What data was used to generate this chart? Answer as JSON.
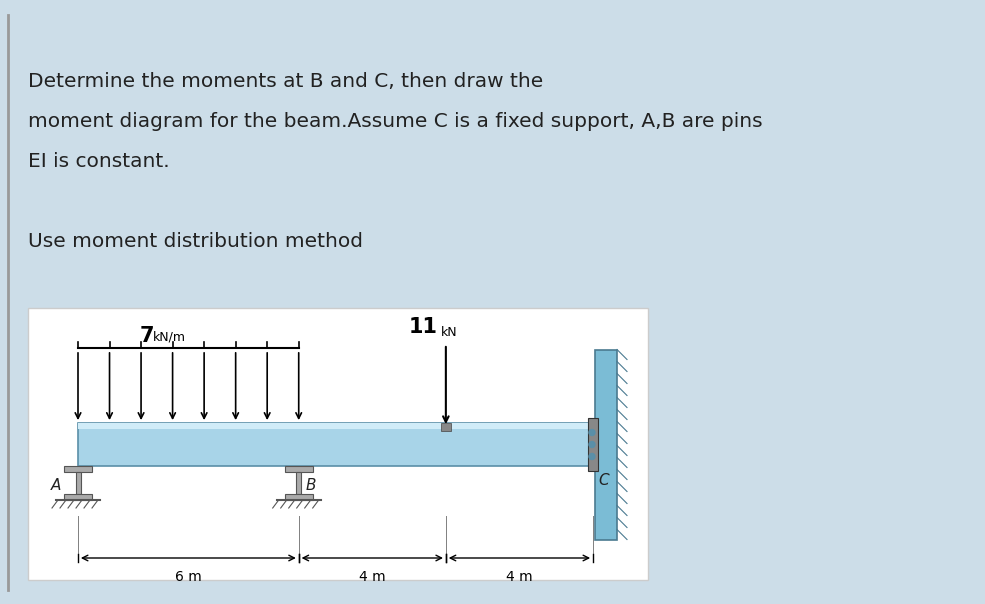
{
  "bg_color": "#ccdde8",
  "title_lines": [
    "Determine the moments at B and C, then draw the",
    "moment diagram for the beam.Assume C is a fixed support, A,B are pins",
    "EI is constant."
  ],
  "subtitle": "Use moment distribution method",
  "beam_color_light": "#a8d4e8",
  "beam_color_dark": "#7ab8d0",
  "beam_edge": "#5a8fa8",
  "wall_color": "#7bbcd5",
  "wall_edge": "#4a7a90",
  "support_color": "#aaaaaa",
  "support_edge": "#555555",
  "text_color": "#222222",
  "dim_color": "#111111",
  "dist_load_label": "7",
  "point_load_label": "11",
  "span_labels": [
    "6 m",
    "4 m",
    "4 m"
  ]
}
